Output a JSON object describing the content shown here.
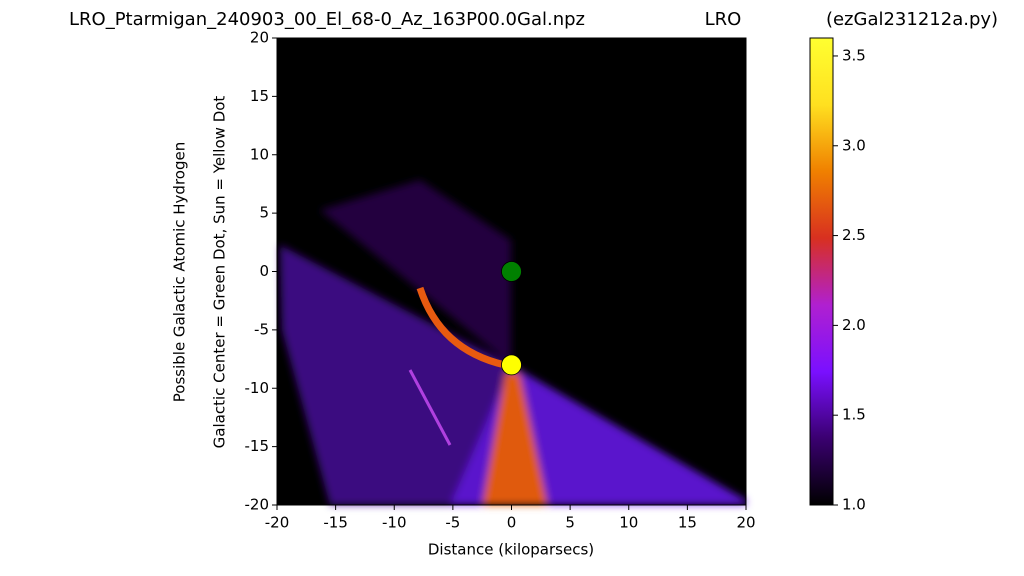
{
  "chart_data": {
    "type": "image",
    "title": "LRO_Ptarmigan_240903_00_El_68-0_Az_163P00.0Gal.npz",
    "subtitle": "LRO",
    "annotation": "(ezGal231212a.py)",
    "y_label": [
      "Possible Galactic Atomic Hydrogen",
      "Galactic Center = Green Dot, Sun = Yellow Dot"
    ],
    "x_label": "Distance (kiloparsecs)",
    "xlim": [
      -20,
      20
    ],
    "xticks": [
      -20,
      -15,
      -10,
      -5,
      0,
      5,
      10,
      15,
      20
    ],
    "ylim": [
      -20,
      20
    ],
    "yticks": [
      -20,
      -15,
      -10,
      -5,
      0,
      5,
      10,
      15,
      20
    ],
    "points": {
      "x": [
        0,
        0
      ],
      "y": [
        0,
        -8
      ],
      "colors": [
        "#008000",
        "#ffff00"
      ]
    },
    "colorbar": {
      "lim": [
        1.0,
        3.6
      ],
      "ticks": [
        {
          "value": 1.0,
          "label": "1.0"
        },
        1.5,
        {
          "value": 2.0,
          "label": "2.0"
        },
        2.5,
        {
          "value": 3.0,
          "label": "3.0"
        },
        3.5
      ],
      "colors": [
        "#000000",
        "#3a0070",
        "#7a10ff",
        "#b020d0",
        "#d83020",
        "#f08000",
        "#ffe020",
        "#ffff30"
      ]
    }
  }
}
